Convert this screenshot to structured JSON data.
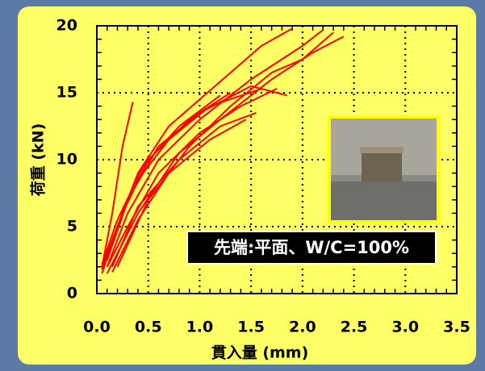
{
  "chart_data": {
    "type": "line",
    "xlabel": "貫入量 (mm)",
    "ylabel": "荷重 (kN)",
    "annotation": "先端:平面、W/C=100%",
    "xlim": [
      0,
      3.5
    ],
    "ylim": [
      0,
      20
    ],
    "xticks": [
      {
        "value": 0,
        "label": "0.0"
      },
      {
        "value": 0.5,
        "label": "0.5"
      },
      {
        "value": 1,
        "label": "1.0"
      },
      {
        "value": 1.5,
        "label": "1.5"
      },
      {
        "value": 2,
        "label": "2.0"
      },
      {
        "value": 2.5,
        "label": "2.5"
      },
      {
        "value": 3,
        "label": "3.0"
      },
      {
        "value": 3.5,
        "label": "3.5"
      }
    ],
    "yticks": [
      0,
      5,
      10,
      15,
      20
    ],
    "grid": true,
    "series": [
      {
        "color": "#ff0000",
        "x": [
          0.05,
          0.15,
          0.25,
          0.35
        ],
        "values": [
          2,
          6,
          11,
          14.3
        ]
      },
      {
        "color": "#ff0000",
        "x": [
          0.05,
          0.2,
          0.4,
          0.7,
          1.0,
          1.3,
          1.6,
          1.9
        ],
        "values": [
          1.5,
          5,
          9,
          12.5,
          14.5,
          16.5,
          18.5,
          19.8
        ]
      },
      {
        "color": "#ff0000",
        "x": [
          0.1,
          0.3,
          0.6,
          1.0,
          1.5,
          2.0,
          2.2
        ],
        "values": [
          2,
          6,
          10,
          13,
          16,
          18.5,
          19.7
        ]
      },
      {
        "color": "#ff0000",
        "x": [
          0.1,
          0.4,
          0.8,
          1.2,
          1.7,
          2.1,
          2.4
        ],
        "values": [
          1.5,
          6,
          10.5,
          13,
          16,
          18,
          19.2
        ]
      },
      {
        "color": "#ff0000",
        "x": [
          0.05,
          0.3,
          0.6,
          1.0,
          1.5,
          1.85
        ],
        "values": [
          2,
          7,
          11,
          13.5,
          15.5,
          14.8
        ]
      },
      {
        "color": "#ff0000",
        "x": [
          0.1,
          0.35,
          0.7,
          1.1,
          1.6
        ],
        "values": [
          2.5,
          8,
          11.5,
          14,
          15.3
        ]
      },
      {
        "color": "#ff0000",
        "x": [
          0.15,
          0.4,
          0.8,
          1.2,
          1.55
        ],
        "values": [
          2,
          6.5,
          10,
          12.5,
          13.5
        ]
      },
      {
        "color": "#ff0000",
        "x": [
          0.05,
          0.25,
          0.5,
          0.9,
          1.3
        ],
        "values": [
          1.8,
          6,
          10,
          13,
          15
        ]
      },
      {
        "color": "#ff0000",
        "x": [
          0.2,
          0.5,
          0.9,
          1.3,
          1.7,
          2.0,
          2.3
        ],
        "values": [
          2,
          7,
          11,
          14,
          16.5,
          17.5,
          19.5
        ]
      },
      {
        "color": "#ff0000",
        "x": [
          0.1,
          0.3,
          0.6,
          1.0,
          1.4,
          1.75
        ],
        "values": [
          2,
          5,
          9,
          12,
          14,
          15.3
        ]
      },
      {
        "color": "#ff0000",
        "x": [
          0.05,
          0.2,
          0.45,
          0.8,
          1.2
        ],
        "values": [
          2.2,
          5.5,
          9.5,
          12.5,
          14.8
        ]
      },
      {
        "color": "#ff0000",
        "x": [
          0.15,
          0.4,
          0.7,
          1.1,
          1.45
        ],
        "values": [
          1.6,
          5.5,
          9,
          11.5,
          13
        ]
      }
    ]
  }
}
